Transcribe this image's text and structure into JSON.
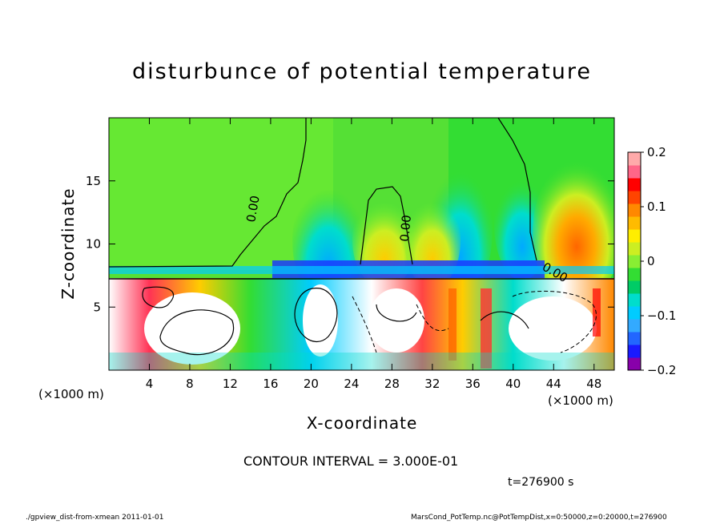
{
  "chart_data": {
    "type": "heatmap",
    "title": "disturbunce of potential temperature",
    "xlabel": "X-coordinate",
    "ylabel": "Z-coordinate",
    "x_unit": "(×1000 m)",
    "y_unit": "(×1000 m)",
    "xlim": [
      0,
      50
    ],
    "ylim": [
      0,
      20
    ],
    "x_ticks": [
      4,
      8,
      12,
      16,
      20,
      24,
      28,
      32,
      36,
      40,
      44,
      48
    ],
    "y_ticks": [
      5,
      10,
      15
    ],
    "colorbar": {
      "range": [
        -0.2,
        0.2
      ],
      "tick_values": [
        0.2,
        0.1,
        0,
        -0.1,
        -0.2
      ],
      "tick_labels": [
        "0.2",
        "0.1",
        "0",
        "−0.1",
        "−0.2"
      ],
      "colors": [
        "#8800aa",
        "#1a1aff",
        "#2266ff",
        "#33aaff",
        "#00ccff",
        "#00ddcc",
        "#00cc66",
        "#33dd33",
        "#88ee33",
        "#ccee22",
        "#ffee00",
        "#ffbb00",
        "#ff8800",
        "#ff4400",
        "#ff0000",
        "#ff6688",
        "#ffaaaa"
      ]
    },
    "contour_labels": [
      "0.00",
      "0.00",
      "0.00"
    ],
    "contour_interval": "CONTOUR INTERVAL = 3.000E-01",
    "time": "t=276900 s"
  },
  "footer": {
    "left": "./gpview_dist-from-xmean  2011-01-01",
    "right": "MarsCond_PotTemp.nc@PotTempDist,x=0:50000,z=0:20000,t=276900"
  }
}
